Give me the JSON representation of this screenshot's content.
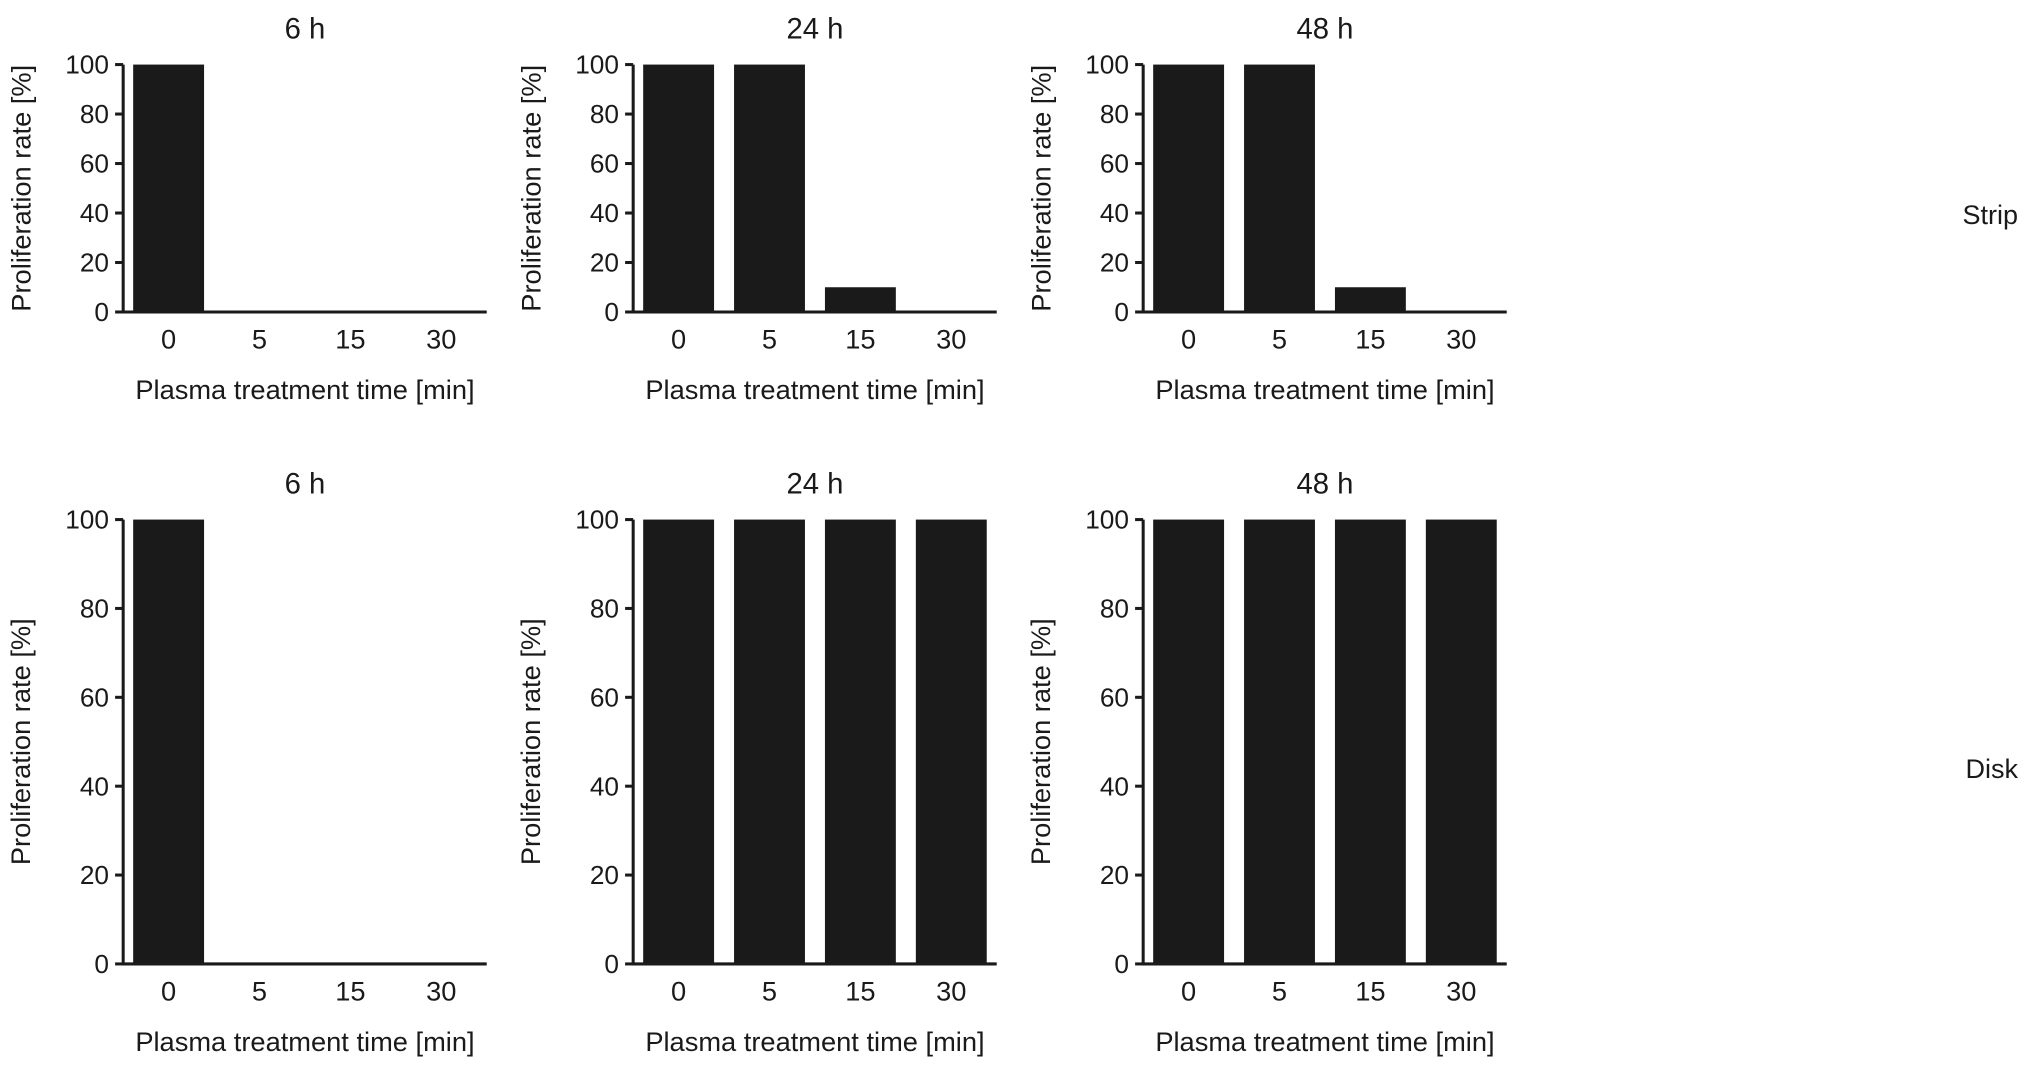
{
  "figure": {
    "row_labels": [
      "Strip",
      "Disk"
    ],
    "background": "#ffffff",
    "bar_color": "#1a1a1a",
    "axis_color": "#1a1a1a",
    "text_color": "#1a1a1a"
  },
  "chart_data": [
    {
      "type": "bar",
      "row": "Strip",
      "title": "6 h",
      "categories": [
        "0",
        "5",
        "15",
        "30"
      ],
      "values": [
        100,
        0,
        0,
        0
      ],
      "xlabel": "Plasma treatment time [min]",
      "ylabel": "Proliferation rate [%]",
      "ylim": [
        0,
        100
      ],
      "yticks": [
        0,
        20,
        40,
        60,
        80,
        100
      ],
      "grid": false
    },
    {
      "type": "bar",
      "row": "Strip",
      "title": "24 h",
      "categories": [
        "0",
        "5",
        "15",
        "30"
      ],
      "values": [
        100,
        100,
        10,
        0
      ],
      "xlabel": "Plasma treatment time [min]",
      "ylabel": "Proliferation rate [%]",
      "ylim": [
        0,
        100
      ],
      "yticks": [
        0,
        20,
        40,
        60,
        80,
        100
      ],
      "grid": false
    },
    {
      "type": "bar",
      "row": "Strip",
      "title": "48 h",
      "categories": [
        "0",
        "5",
        "15",
        "30"
      ],
      "values": [
        100,
        100,
        10,
        0
      ],
      "xlabel": "Plasma treatment time [min]",
      "ylabel": "Proliferation rate [%]",
      "ylim": [
        0,
        100
      ],
      "yticks": [
        0,
        20,
        40,
        60,
        80,
        100
      ],
      "grid": false
    },
    {
      "type": "bar",
      "row": "Disk",
      "title": "6 h",
      "categories": [
        "0",
        "5",
        "15",
        "30"
      ],
      "values": [
        100,
        0,
        0,
        0
      ],
      "xlabel": "Plasma treatment time [min]",
      "ylabel": "Proliferation rate [%]",
      "ylim": [
        0,
        100
      ],
      "yticks": [
        0,
        20,
        40,
        60,
        80,
        100
      ],
      "grid": false
    },
    {
      "type": "bar",
      "row": "Disk",
      "title": "24 h",
      "categories": [
        "0",
        "5",
        "15",
        "30"
      ],
      "values": [
        100,
        100,
        100,
        100
      ],
      "xlabel": "Plasma treatment time [min]",
      "ylabel": "Proliferation rate [%]",
      "ylim": [
        0,
        100
      ],
      "yticks": [
        0,
        20,
        40,
        60,
        80,
        100
      ],
      "grid": false
    },
    {
      "type": "bar",
      "row": "Disk",
      "title": "48 h",
      "categories": [
        "0",
        "5",
        "15",
        "30"
      ],
      "values": [
        100,
        100,
        100,
        100
      ],
      "xlabel": "Plasma treatment time [min]",
      "ylabel": "Proliferation rate [%]",
      "ylim": [
        0,
        100
      ],
      "yticks": [
        0,
        20,
        40,
        60,
        80,
        100
      ],
      "grid": false
    }
  ]
}
